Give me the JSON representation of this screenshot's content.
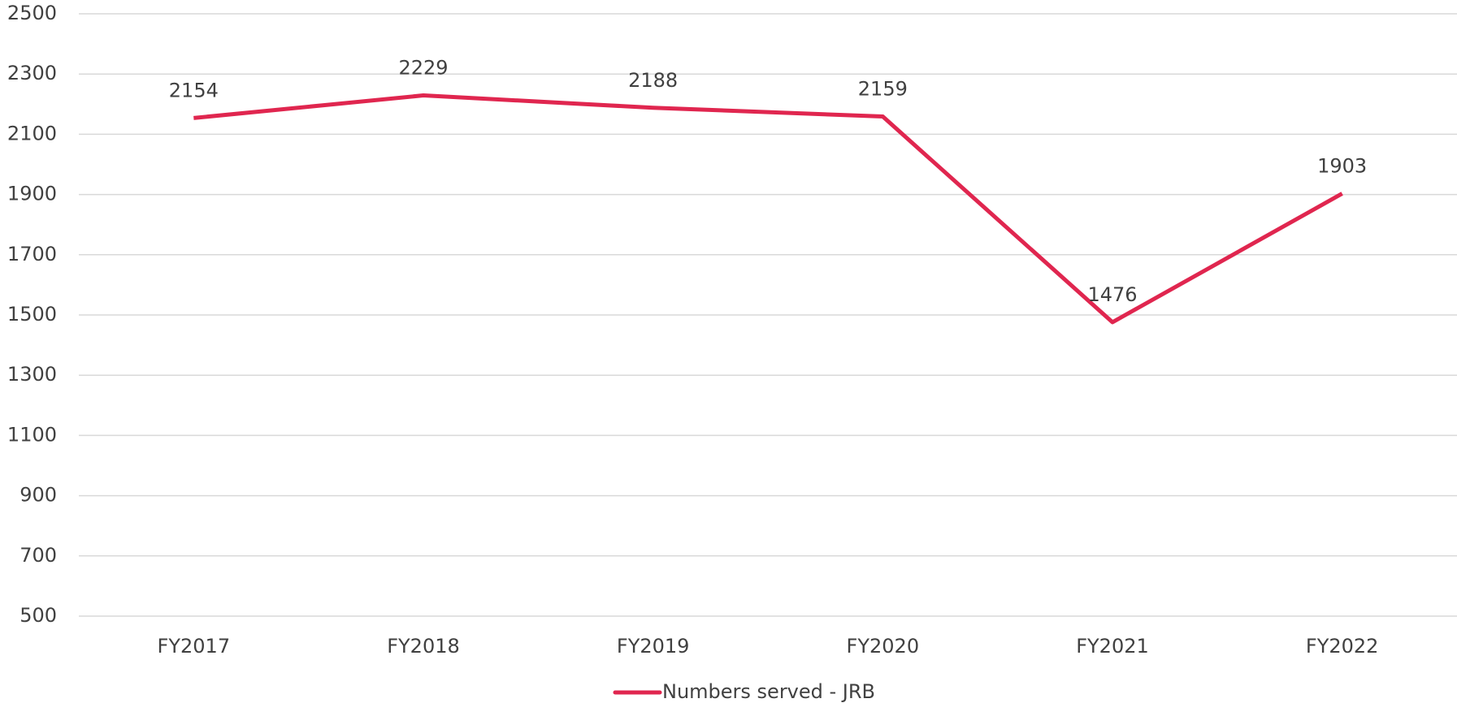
{
  "chart_data": {
    "type": "line",
    "categories": [
      "FY2017",
      "FY2018",
      "FY2019",
      "FY2020",
      "FY2021",
      "FY2022"
    ],
    "series": [
      {
        "name": "Numbers served - JRB",
        "color": "#e0264f",
        "values": [
          2154,
          2229,
          2188,
          2159,
          1476,
          1903
        ]
      }
    ],
    "ylim": [
      500,
      2500
    ],
    "yticks": [
      500,
      700,
      900,
      1100,
      1300,
      1500,
      1700,
      1900,
      2100,
      2300,
      2500
    ],
    "grid": true,
    "legend": "bottom"
  }
}
